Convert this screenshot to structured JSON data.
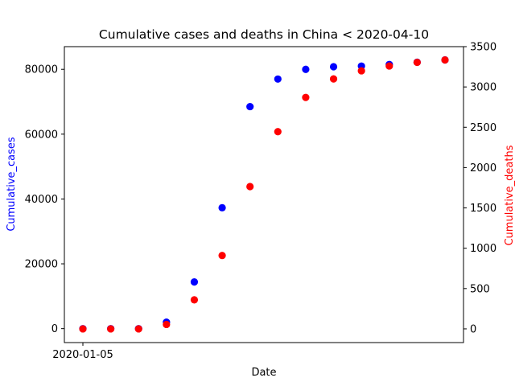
{
  "chart_data": {
    "type": "scatter",
    "title": "Cumulative cases and deaths in China < 2020-04-10",
    "xlabel": "Date",
    "x_tick_labels": [
      "2020-01-05"
    ],
    "x": [
      "2020-01-05",
      "2020-01-12",
      "2020-01-19",
      "2020-01-26",
      "2020-02-02",
      "2020-02-09",
      "2020-02-16",
      "2020-02-23",
      "2020-03-01",
      "2020-03-08",
      "2020-03-15",
      "2020-03-22",
      "2020-03-29",
      "2020-04-05"
    ],
    "left_axis": {
      "label": "Cumulative_cases",
      "color": "#0000ff",
      "ylim": [
        -4300,
        87000
      ],
      "ticks": [
        0,
        20000,
        40000,
        60000,
        80000
      ],
      "tick_labels": [
        "0",
        "20000",
        "40000",
        "60000",
        "80000"
      ]
    },
    "right_axis": {
      "label": "Cumulative_deaths",
      "color": "#ff0000",
      "ylim": [
        -170,
        3500
      ],
      "ticks": [
        0,
        500,
        1000,
        1500,
        2000,
        2500,
        3000,
        3500
      ],
      "tick_labels": [
        "0",
        "500",
        "1000",
        "1500",
        "2000",
        "2500",
        "3000",
        "3500"
      ]
    },
    "series": [
      {
        "axis": "left",
        "color": "#0000ff",
        "values": [
          0,
          0,
          0,
          2000,
          14400,
          37300,
          68500,
          77000,
          80000,
          80800,
          81000,
          81500,
          82200,
          82900
        ]
      },
      {
        "axis": "right",
        "color": "#ff0000",
        "values": [
          0,
          0,
          0,
          55,
          360,
          910,
          1765,
          2445,
          2870,
          3100,
          3200,
          3260,
          3305,
          3335
        ]
      }
    ],
    "grid": false,
    "legend": "none"
  }
}
